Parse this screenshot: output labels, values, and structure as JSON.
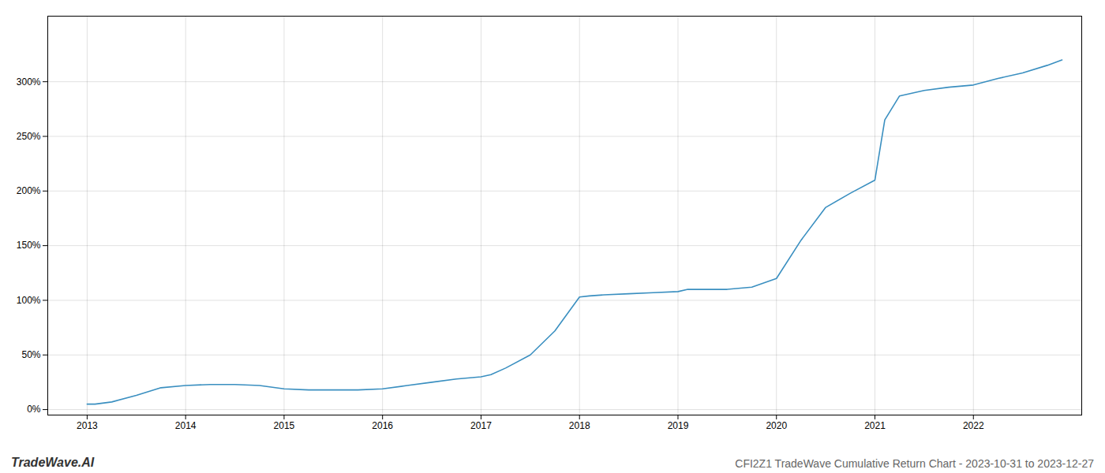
{
  "chart_data": {
    "type": "line",
    "title": "CFI2Z1 TradeWave Cumulative Return Chart - 2023-10-31 to 2023-12-27",
    "annotations": [
      "TradeWave.AI"
    ],
    "color": "#3a8fc0",
    "x": [
      2013.0,
      2013.08,
      2013.25,
      2013.5,
      2013.75,
      2014.0,
      2014.25,
      2014.5,
      2014.75,
      2015.0,
      2015.25,
      2015.5,
      2015.75,
      2016.0,
      2016.25,
      2016.5,
      2016.75,
      2017.0,
      2017.1,
      2017.25,
      2017.5,
      2017.75,
      2018.0,
      2018.1,
      2018.25,
      2018.5,
      2018.75,
      2019.0,
      2019.1,
      2019.25,
      2019.5,
      2019.75,
      2020.0,
      2020.25,
      2020.5,
      2020.75,
      2021.0,
      2021.1,
      2021.25,
      2021.5,
      2021.75,
      2022.0,
      2022.25,
      2022.5,
      2022.75,
      2022.9
    ],
    "values": [
      5,
      5,
      7,
      13,
      20,
      22,
      23,
      23,
      22,
      19,
      18,
      18,
      18,
      19,
      22,
      25,
      28,
      30,
      32,
      38,
      50,
      72,
      103,
      104,
      105,
      106,
      107,
      108,
      110,
      110,
      110,
      112,
      120,
      155,
      185,
      198,
      210,
      265,
      287,
      292,
      295,
      297,
      303,
      308,
      315,
      320
    ],
    "xlim": [
      2012.6,
      2023.1
    ],
    "ylim": [
      -5,
      360
    ],
    "xticks": [
      2013,
      2014,
      2015,
      2016,
      2017,
      2018,
      2019,
      2020,
      2021,
      2022
    ],
    "yticks": [
      {
        "value": 0,
        "label": "0%"
      },
      {
        "value": 50,
        "label": "50%"
      },
      {
        "value": 100,
        "label": "100%"
      },
      {
        "value": 150,
        "label": "150%"
      },
      {
        "value": 200,
        "label": "200%"
      },
      {
        "value": 250,
        "label": "250%"
      },
      {
        "value": 300,
        "label": "300%"
      }
    ],
    "grid": true
  }
}
